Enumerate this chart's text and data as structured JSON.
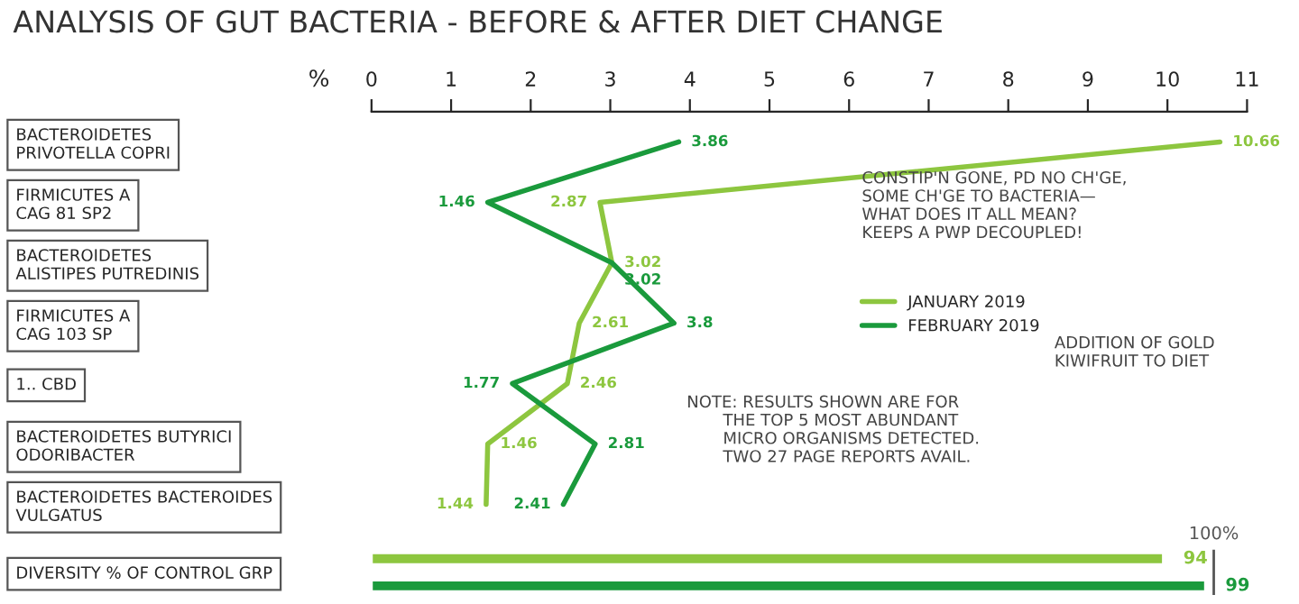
{
  "chart_data": [
    {
      "type": "line",
      "orientation": "horizontal",
      "title": "ANALYSIS OF GUT BACTERIA - BEFORE & AFTER DIET CHANGE",
      "xlabel": "%",
      "categories": [
        "BACTEROIDETES\nPRIVOTELLA COPRI",
        "FIRMICUTES A\nCAG 81 SP2",
        "BACTEROIDETES\nALISTIPES PUTREDINIS",
        "FIRMICUTES A\nCAG 103 SP",
        "1.. CBD",
        "BACTEROIDETES BUTYRICI\nODORIBACTER",
        "BACTEROIDETES BACTEROIDES\nVULGATUS"
      ],
      "series": [
        {
          "name": "JANUARY 2019",
          "color": "#8dc63f",
          "values": [
            10.66,
            2.87,
            3.02,
            2.61,
            2.46,
            1.46,
            1.44
          ]
        },
        {
          "name": "FEBRUARY 2019",
          "color": "#1a9a3c",
          "values": [
            3.86,
            1.46,
            3.02,
            3.8,
            1.77,
            2.81,
            2.41
          ]
        }
      ],
      "xlim": [
        0,
        11
      ],
      "xticks": [
        0,
        1,
        2,
        3,
        4,
        5,
        6,
        7,
        8,
        9,
        10,
        11
      ],
      "data_labels": true,
      "legend": "right",
      "annotations": [
        "CONSTIP'N GONE, PD NO CH'GE,\nSOME CH'GE TO BACTERIA—\nWHAT DOES IT ALL MEAN?\nKEEPS A PWP DECOUPLED!",
        "ADDITION OF GOLD\nKIWIFRUIT TO DIET",
        "NOTE: RESULTS SHOWN ARE FOR\n       THE TOP 5 MOST ABUNDANT\n       MICRO ORGANISMS DETECTED.\n       TWO 27 PAGE REPORTS AVAIL."
      ]
    },
    {
      "type": "bar",
      "orientation": "horizontal",
      "categories": [
        "DIVERSITY % OF CONTROL GRP"
      ],
      "series": [
        {
          "color": "#8dc63f",
          "values": [
            94
          ]
        },
        {
          "color": "#1a9a3c",
          "values": [
            99
          ]
        }
      ],
      "tick_labels": false,
      "data_labels": true,
      "ref_lines": [
        {
          "axis": "x",
          "value": 100,
          "label": "100%"
        }
      ]
    }
  ]
}
